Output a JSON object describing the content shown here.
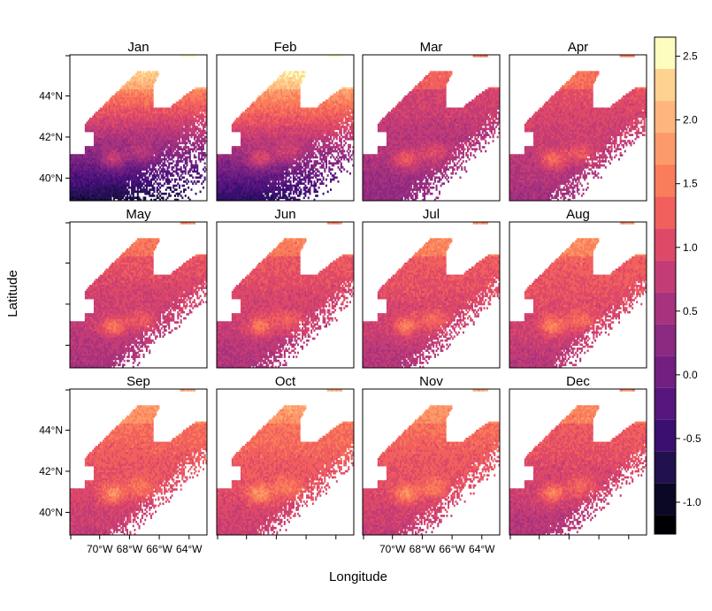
{
  "chart_data": {
    "type": "heatmap",
    "layout": "small-multiples 4x3",
    "panels": [
      "Jan",
      "Feb",
      "Mar",
      "Apr",
      "May",
      "Jun",
      "Jul",
      "Aug",
      "Sep",
      "Oct",
      "Nov",
      "Dec"
    ],
    "xlabel": "Longitude",
    "ylabel": "Latitude",
    "x_ticks": [
      "70°W",
      "68°W",
      "66°W",
      "64°W"
    ],
    "x_tick_values": [
      -70,
      -68,
      -66,
      -64
    ],
    "y_ticks": [
      "44°N",
      "42°N",
      "40°N"
    ],
    "y_tick_values": [
      44,
      42,
      40
    ],
    "xlim": [
      -72.0,
      -62.8
    ],
    "ylim": [
      38.9,
      46.0
    ],
    "colorbar": {
      "range": [
        -1.25,
        2.65
      ],
      "breaks": [
        -1.25,
        -1.1,
        -0.85,
        -0.6,
        -0.35,
        -0.1,
        0.15,
        0.4,
        0.65,
        0.9,
        1.15,
        1.4,
        1.65,
        1.9,
        2.15,
        2.4,
        2.65
      ],
      "colors": [
        "#000004",
        "#0b0826",
        "#21114e",
        "#3b0f70",
        "#57157e",
        "#721f81",
        "#8c2981",
        "#a8327d",
        "#c43c75",
        "#de4968",
        "#f1605d",
        "#f97d5a",
        "#fd9a6a",
        "#feb67c",
        "#fed28f",
        "#fcfdbf"
      ],
      "tick_labels": [
        "-1.0",
        "-0.5",
        "0.0",
        "0.5",
        "1.0",
        "1.5",
        "2.0",
        "2.5"
      ],
      "tick_values": [
        -1.0,
        -0.5,
        0.0,
        0.5,
        1.0,
        1.5,
        2.0,
        2.5
      ]
    },
    "monthly_mean_value": [
      -0.1,
      0.1,
      0.5,
      0.65,
      0.7,
      0.75,
      0.8,
      0.85,
      0.95,
      1.0,
      0.95,
      0.8
    ],
    "missing_data_fraction_offshore": [
      0.2,
      0.25,
      0.45,
      0.5,
      0.5,
      0.5,
      0.55,
      0.55,
      0.55,
      0.55,
      0.5,
      0.5
    ]
  }
}
